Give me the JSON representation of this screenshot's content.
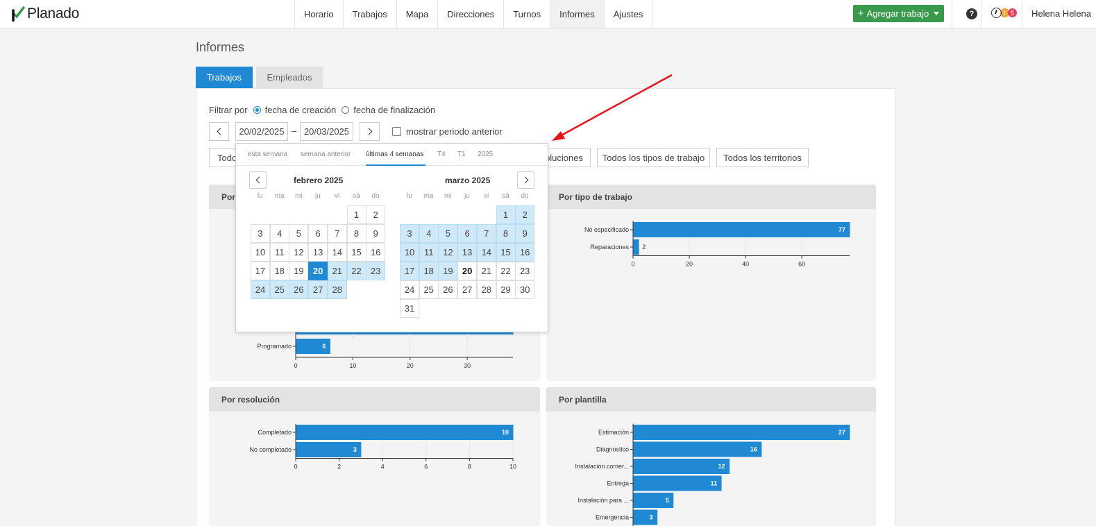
{
  "brand": {
    "name": "Planado"
  },
  "nav": {
    "items": [
      "Horario",
      "Trabajos",
      "Mapa",
      "Direcciones",
      "Turnos",
      "Informes",
      "Ajustes"
    ],
    "active": "Informes"
  },
  "header": {
    "add_button": "Agregar trabajo",
    "help": "?",
    "badge_1": "1",
    "badge_2": "5",
    "user": "Helena Helena"
  },
  "page": {
    "title": "Informes",
    "tabs": [
      "Trabajos",
      "Empleados"
    ]
  },
  "filters": {
    "label": "Filtrar por",
    "option_created": "fecha de creación",
    "option_finished": "fecha de finalización",
    "date_from": "20/02/2025",
    "date_to": "20/03/2025",
    "dash": "–",
    "show_previous": "mostrar periodo anterior",
    "dropdown_left_partial": "Todo",
    "dropdown_resolutions_partial": "oluciones",
    "dropdown_job_types": "Todos los tipos de trabajo",
    "dropdown_territories": "Todos los territorios"
  },
  "datepicker": {
    "ranges": [
      "esta semana",
      "semana anterior",
      "últimas 4 semanas",
      "T4",
      "T1",
      "2025"
    ],
    "active_range": "últimas 4 semanas",
    "weekdays": [
      "lu",
      "ma",
      "mi",
      "ju",
      "vi",
      "sá",
      "do"
    ],
    "left_month": "febrero 2025",
    "right_month": "marzo 2025"
  },
  "cards": {
    "status_title_partial": "Por",
    "job_type_title": "Por tipo de trabajo",
    "resolution_title": "Por resolución",
    "template_title": "Por plantilla"
  },
  "chart_data": [
    {
      "type": "bar",
      "orientation": "horizontal",
      "title": "Por tipo de trabajo",
      "categories": [
        "No especificado",
        "Reparaciones"
      ],
      "values": [
        77,
        2
      ],
      "xticks": [
        0,
        20,
        40,
        60
      ],
      "xlim": [
        0,
        77
      ]
    },
    {
      "type": "bar",
      "orientation": "horizontal",
      "title": "Por",
      "categories": [
        "Programado"
      ],
      "values": [
        6
      ],
      "xticks": [
        0,
        10,
        20,
        30
      ],
      "xlim": [
        0,
        38
      ]
    },
    {
      "type": "bar",
      "orientation": "horizontal",
      "title": "Por resolución",
      "categories": [
        "Completado",
        "No completado"
      ],
      "values": [
        10,
        3
      ],
      "xticks": [
        0,
        2,
        4,
        6,
        8,
        10
      ],
      "xlim": [
        0,
        10
      ]
    },
    {
      "type": "bar",
      "orientation": "horizontal",
      "title": "Por plantilla",
      "categories": [
        "Estimación",
        "Diagnostico",
        "Instalación comer...",
        "Entrega",
        "Instalación para ...",
        "Emergencia"
      ],
      "values": [
        27,
        16,
        12,
        11,
        5,
        3
      ],
      "xlim": [
        0,
        27
      ]
    }
  ],
  "colors": {
    "primary": "#1f89d3",
    "green": "#3a9a4b",
    "range": "#cfe9f8",
    "arrow": "#e8141a"
  }
}
